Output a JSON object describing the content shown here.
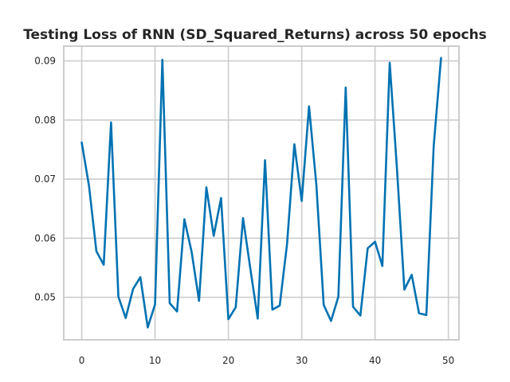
{
  "chart_data": {
    "type": "line",
    "title": "Testing Loss of RNN (SD_Squared_Returns) across 50 epochs",
    "xlabel": "",
    "ylabel": "",
    "xlim": [
      -2.45,
      51.45
    ],
    "ylim": [
      0.0428,
      0.0925
    ],
    "xticks": [
      0,
      10,
      20,
      30,
      40,
      50
    ],
    "yticks": [
      0.05,
      0.06,
      0.07,
      0.08,
      0.09
    ],
    "ytick_labels": [
      "0.05",
      "0.06",
      "0.07",
      "0.08",
      "0.09"
    ],
    "grid": true,
    "series": [
      {
        "color": "#0072b2",
        "x": [
          0,
          1,
          2,
          3,
          4,
          5,
          6,
          7,
          8,
          9,
          10,
          11,
          12,
          13,
          14,
          15,
          16,
          17,
          18,
          19,
          20,
          21,
          22,
          23,
          24,
          25,
          26,
          27,
          28,
          29,
          30,
          31,
          32,
          33,
          34,
          35,
          36,
          37,
          38,
          39,
          40,
          41,
          42,
          43,
          44,
          45,
          46,
          47,
          48,
          49
        ],
        "values": [
          0.0762,
          0.0688,
          0.0578,
          0.0555,
          0.0796,
          0.0501,
          0.0465,
          0.0514,
          0.0534,
          0.0449,
          0.0488,
          0.0902,
          0.049,
          0.0476,
          0.0632,
          0.0576,
          0.0494,
          0.0686,
          0.0604,
          0.0668,
          0.0463,
          0.0483,
          0.0634,
          0.0548,
          0.0464,
          0.0732,
          0.0479,
          0.0486,
          0.059,
          0.0759,
          0.0663,
          0.0823,
          0.069,
          0.0487,
          0.046,
          0.0501,
          0.0855,
          0.0484,
          0.0469,
          0.0583,
          0.0594,
          0.0553,
          0.0897,
          0.0716,
          0.0513,
          0.0538,
          0.0473,
          0.047,
          0.0756,
          0.0905
        ]
      }
    ]
  }
}
